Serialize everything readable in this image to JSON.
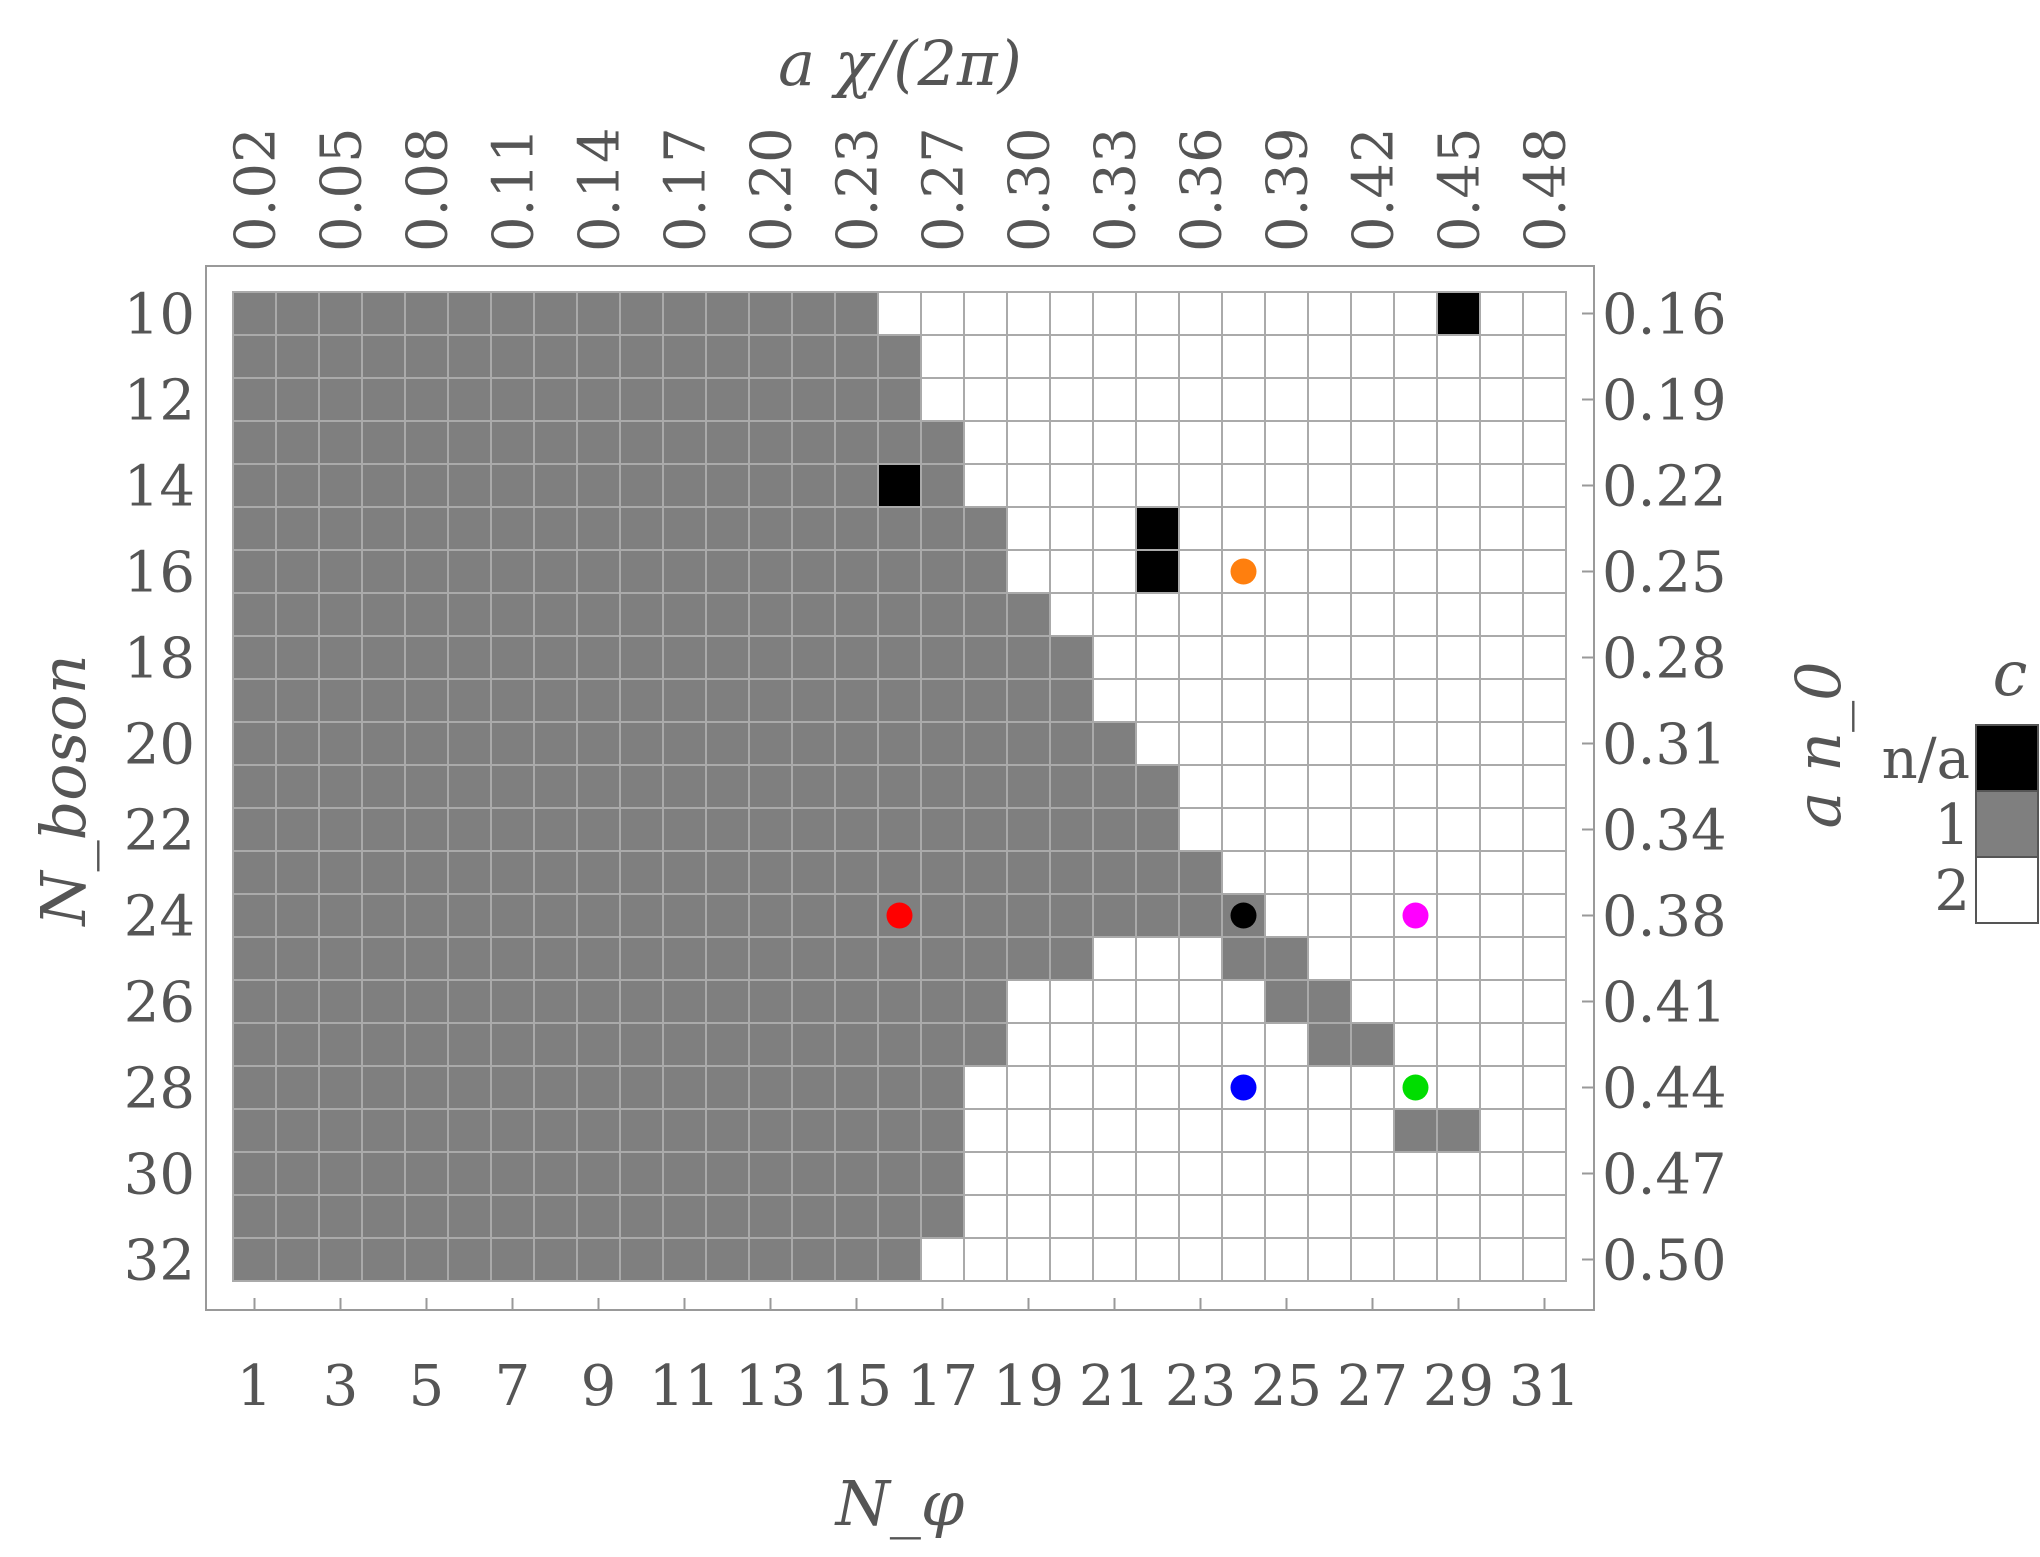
{
  "chart_data": {
    "type": "heatmap",
    "xlabel": "N_φ",
    "ylabel": "N_boson",
    "top_xlabel": "a χ/(2π)",
    "right_ylabel": "a n_0",
    "x": [
      1,
      2,
      3,
      4,
      5,
      6,
      7,
      8,
      9,
      10,
      11,
      12,
      13,
      14,
      15,
      16,
      17,
      18,
      19,
      20,
      21,
      22,
      23,
      24,
      25,
      26,
      27,
      28,
      29,
      30,
      31
    ],
    "y": [
      10,
      11,
      12,
      13,
      14,
      15,
      16,
      17,
      18,
      19,
      20,
      21,
      22,
      23,
      24,
      25,
      26,
      27,
      28,
      29,
      30,
      31,
      32
    ],
    "x_ticks": [
      "1",
      "3",
      "5",
      "7",
      "9",
      "11",
      "13",
      "15",
      "17",
      "19",
      "21",
      "23",
      "25",
      "27",
      "29",
      "31"
    ],
    "y_ticks": [
      "10",
      "12",
      "14",
      "16",
      "18",
      "20",
      "22",
      "24",
      "26",
      "28",
      "30",
      "32"
    ],
    "top_ticks": [
      "0.02",
      "0.05",
      "0.08",
      "0.11",
      "0.14",
      "0.17",
      "0.20",
      "0.23",
      "0.27",
      "0.30",
      "0.33",
      "0.36",
      "0.39",
      "0.42",
      "0.45",
      "0.48"
    ],
    "right_ticks": [
      "0.16",
      "0.19",
      "0.22",
      "0.25",
      "0.28",
      "0.31",
      "0.34",
      "0.38",
      "0.41",
      "0.44",
      "0.47",
      "0.50"
    ],
    "grid": true,
    "legend": {
      "title": "c",
      "position": "right",
      "entries": [
        {
          "label": "n/a",
          "value": 0,
          "color": "#000000"
        },
        {
          "label": "1",
          "value": 1,
          "color": "#7f7f7f"
        },
        {
          "label": "2",
          "value": 2,
          "color": "#ffffff"
        }
      ]
    },
    "values": [
      [
        1,
        1,
        1,
        1,
        1,
        1,
        1,
        1,
        1,
        1,
        1,
        1,
        1,
        1,
        1,
        2,
        2,
        2,
        2,
        2,
        2,
        2,
        2,
        2,
        2,
        2,
        2,
        2,
        0,
        2,
        2
      ],
      [
        1,
        1,
        1,
        1,
        1,
        1,
        1,
        1,
        1,
        1,
        1,
        1,
        1,
        1,
        1,
        1,
        2,
        2,
        2,
        2,
        2,
        2,
        2,
        2,
        2,
        2,
        2,
        2,
        2,
        2,
        2
      ],
      [
        1,
        1,
        1,
        1,
        1,
        1,
        1,
        1,
        1,
        1,
        1,
        1,
        1,
        1,
        1,
        1,
        2,
        2,
        2,
        2,
        2,
        2,
        2,
        2,
        2,
        2,
        2,
        2,
        2,
        2,
        2
      ],
      [
        1,
        1,
        1,
        1,
        1,
        1,
        1,
        1,
        1,
        1,
        1,
        1,
        1,
        1,
        1,
        1,
        1,
        2,
        2,
        2,
        2,
        2,
        2,
        2,
        2,
        2,
        2,
        2,
        2,
        2,
        2
      ],
      [
        1,
        1,
        1,
        1,
        1,
        1,
        1,
        1,
        1,
        1,
        1,
        1,
        1,
        1,
        1,
        0,
        1,
        2,
        2,
        2,
        2,
        2,
        2,
        2,
        2,
        2,
        2,
        2,
        2,
        2,
        2
      ],
      [
        1,
        1,
        1,
        1,
        1,
        1,
        1,
        1,
        1,
        1,
        1,
        1,
        1,
        1,
        1,
        1,
        1,
        1,
        2,
        2,
        2,
        0,
        2,
        2,
        2,
        2,
        2,
        2,
        2,
        2,
        2
      ],
      [
        1,
        1,
        1,
        1,
        1,
        1,
        1,
        1,
        1,
        1,
        1,
        1,
        1,
        1,
        1,
        1,
        1,
        1,
        2,
        2,
        2,
        0,
        2,
        2,
        2,
        2,
        2,
        2,
        2,
        2,
        2
      ],
      [
        1,
        1,
        1,
        1,
        1,
        1,
        1,
        1,
        1,
        1,
        1,
        1,
        1,
        1,
        1,
        1,
        1,
        1,
        1,
        2,
        2,
        2,
        2,
        2,
        2,
        2,
        2,
        2,
        2,
        2,
        2
      ],
      [
        1,
        1,
        1,
        1,
        1,
        1,
        1,
        1,
        1,
        1,
        1,
        1,
        1,
        1,
        1,
        1,
        1,
        1,
        1,
        1,
        2,
        2,
        2,
        2,
        2,
        2,
        2,
        2,
        2,
        2,
        2
      ],
      [
        1,
        1,
        1,
        1,
        1,
        1,
        1,
        1,
        1,
        1,
        1,
        1,
        1,
        1,
        1,
        1,
        1,
        1,
        1,
        1,
        2,
        2,
        2,
        2,
        2,
        2,
        2,
        2,
        2,
        2,
        2
      ],
      [
        1,
        1,
        1,
        1,
        1,
        1,
        1,
        1,
        1,
        1,
        1,
        1,
        1,
        1,
        1,
        1,
        1,
        1,
        1,
        1,
        1,
        2,
        2,
        2,
        2,
        2,
        2,
        2,
        2,
        2,
        2
      ],
      [
        1,
        1,
        1,
        1,
        1,
        1,
        1,
        1,
        1,
        1,
        1,
        1,
        1,
        1,
        1,
        1,
        1,
        1,
        1,
        1,
        1,
        1,
        2,
        2,
        2,
        2,
        2,
        2,
        2,
        2,
        2
      ],
      [
        1,
        1,
        1,
        1,
        1,
        1,
        1,
        1,
        1,
        1,
        1,
        1,
        1,
        1,
        1,
        1,
        1,
        1,
        1,
        1,
        1,
        1,
        2,
        2,
        2,
        2,
        2,
        2,
        2,
        2,
        2
      ],
      [
        1,
        1,
        1,
        1,
        1,
        1,
        1,
        1,
        1,
        1,
        1,
        1,
        1,
        1,
        1,
        1,
        1,
        1,
        1,
        1,
        1,
        1,
        1,
        2,
        2,
        2,
        2,
        2,
        2,
        2,
        2
      ],
      [
        1,
        1,
        1,
        1,
        1,
        1,
        1,
        1,
        1,
        1,
        1,
        1,
        1,
        1,
        1,
        1,
        1,
        1,
        1,
        1,
        1,
        1,
        1,
        1,
        2,
        2,
        2,
        2,
        2,
        2,
        2
      ],
      [
        1,
        1,
        1,
        1,
        1,
        1,
        1,
        1,
        1,
        1,
        1,
        1,
        1,
        1,
        1,
        1,
        1,
        1,
        1,
        1,
        2,
        2,
        2,
        1,
        1,
        2,
        2,
        2,
        2,
        2,
        2
      ],
      [
        1,
        1,
        1,
        1,
        1,
        1,
        1,
        1,
        1,
        1,
        1,
        1,
        1,
        1,
        1,
        1,
        1,
        1,
        2,
        2,
        2,
        2,
        2,
        2,
        1,
        1,
        2,
        2,
        2,
        2,
        2
      ],
      [
        1,
        1,
        1,
        1,
        1,
        1,
        1,
        1,
        1,
        1,
        1,
        1,
        1,
        1,
        1,
        1,
        1,
        1,
        2,
        2,
        2,
        2,
        2,
        2,
        2,
        1,
        1,
        2,
        2,
        2,
        2
      ],
      [
        1,
        1,
        1,
        1,
        1,
        1,
        1,
        1,
        1,
        1,
        1,
        1,
        1,
        1,
        1,
        1,
        1,
        2,
        2,
        2,
        2,
        2,
        2,
        2,
        2,
        2,
        2,
        2,
        2,
        2,
        2
      ],
      [
        1,
        1,
        1,
        1,
        1,
        1,
        1,
        1,
        1,
        1,
        1,
        1,
        1,
        1,
        1,
        1,
        1,
        2,
        2,
        2,
        2,
        2,
        2,
        2,
        2,
        2,
        2,
        1,
        1,
        2,
        2
      ],
      [
        1,
        1,
        1,
        1,
        1,
        1,
        1,
        1,
        1,
        1,
        1,
        1,
        1,
        1,
        1,
        1,
        1,
        2,
        2,
        2,
        2,
        2,
        2,
        2,
        2,
        2,
        2,
        2,
        2,
        2,
        2
      ],
      [
        1,
        1,
        1,
        1,
        1,
        1,
        1,
        1,
        1,
        1,
        1,
        1,
        1,
        1,
        1,
        1,
        1,
        2,
        2,
        2,
        2,
        2,
        2,
        2,
        2,
        2,
        2,
        2,
        2,
        2,
        2
      ],
      [
        1,
        1,
        1,
        1,
        1,
        1,
        1,
        1,
        1,
        1,
        1,
        1,
        1,
        1,
        1,
        1,
        2,
        2,
        2,
        2,
        2,
        2,
        2,
        2,
        2,
        2,
        2,
        2,
        2,
        2,
        2
      ]
    ],
    "markers": [
      {
        "x": 24,
        "y": 16,
        "color": "#ff7f0e"
      },
      {
        "x": 16,
        "y": 24,
        "color": "#ff0000"
      },
      {
        "x": 24,
        "y": 24,
        "color": "#000000"
      },
      {
        "x": 28,
        "y": 24,
        "color": "#ff00ff"
      },
      {
        "x": 24,
        "y": 28,
        "color": "#0000ff"
      },
      {
        "x": 28,
        "y": 28,
        "color": "#00dd00"
      }
    ]
  }
}
